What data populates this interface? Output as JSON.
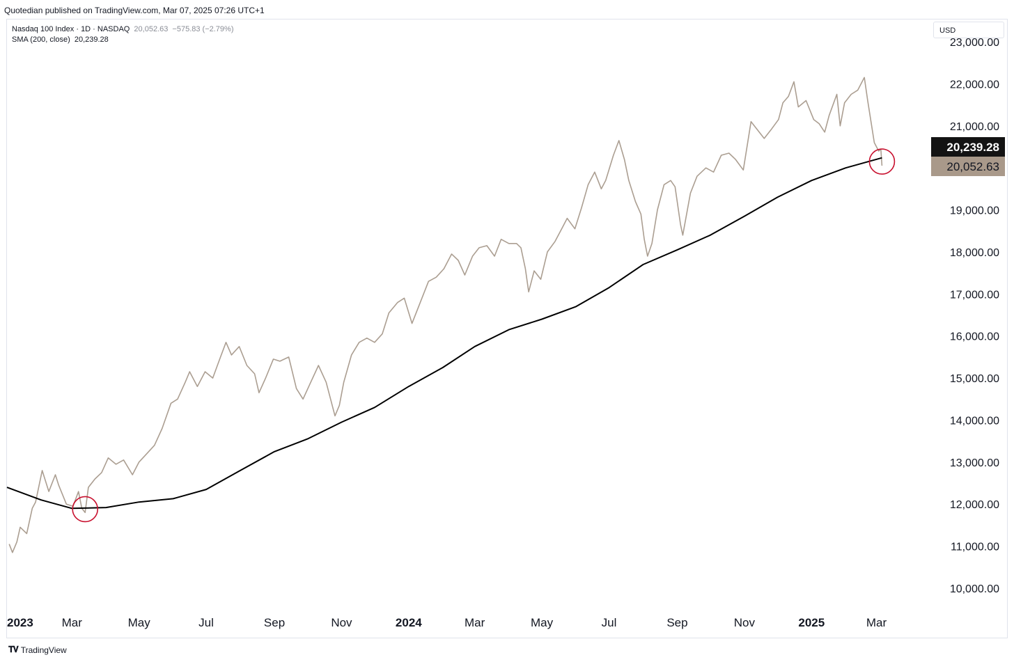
{
  "header": {
    "published": "Quotedian published on TradingView.com, Mar 07, 2025 07:26 UTC+1"
  },
  "legend": {
    "symbol": "Nasdaq 100 Index · 1D · NASDAQ",
    "last": "20,052.63",
    "change": "−575.83 (−2.79%)",
    "sma_label": "SMA (200, close)",
    "sma_value": "20,239.28"
  },
  "currency_button": "USD",
  "footer": {
    "brand": "TradingView"
  },
  "colors": {
    "price": "#ab9e91",
    "sma": "#000000",
    "circle": "#c8102e",
    "sma_tag": "#131313",
    "price_tag": "#a9998a"
  },
  "chart_data": {
    "type": "line",
    "x_axis": {
      "type": "date",
      "range": [
        "2023-01-01",
        "2025-03-07"
      ],
      "ticks": [
        {
          "date": "2023-01-01",
          "label": "2023",
          "bold": true
        },
        {
          "date": "2023-03-01",
          "label": "Mar"
        },
        {
          "date": "2023-05-01",
          "label": "May"
        },
        {
          "date": "2023-07-01",
          "label": "Jul"
        },
        {
          "date": "2023-09-01",
          "label": "Sep"
        },
        {
          "date": "2023-11-01",
          "label": "Nov"
        },
        {
          "date": "2024-01-01",
          "label": "2024",
          "bold": true
        },
        {
          "date": "2024-03-01",
          "label": "Mar"
        },
        {
          "date": "2024-05-01",
          "label": "May"
        },
        {
          "date": "2024-07-01",
          "label": "Jul"
        },
        {
          "date": "2024-09-01",
          "label": "Sep"
        },
        {
          "date": "2024-11-01",
          "label": "Nov"
        },
        {
          "date": "2025-01-01",
          "label": "2025",
          "bold": true
        },
        {
          "date": "2025-03-01",
          "label": "Mar"
        }
      ]
    },
    "y_axis": {
      "position": "right",
      "range": [
        9600,
        23200
      ],
      "ticks": [
        {
          "value": 10000,
          "label": "10,000.00"
        },
        {
          "value": 11000,
          "label": "11,000.00"
        },
        {
          "value": 12000,
          "label": "12,000.00"
        },
        {
          "value": 13000,
          "label": "13,000.00"
        },
        {
          "value": 14000,
          "label": "14,000.00"
        },
        {
          "value": 15000,
          "label": "15,000.00"
        },
        {
          "value": 16000,
          "label": "16,000.00"
        },
        {
          "value": 17000,
          "label": "17,000.00"
        },
        {
          "value": 18000,
          "label": "18,000.00"
        },
        {
          "value": 19000,
          "label": "19,000.00"
        },
        {
          "value": 21000,
          "label": "21,000.00"
        },
        {
          "value": 22000,
          "label": "22,000.00"
        },
        {
          "value": 23000,
          "label": "23,000.00"
        }
      ]
    },
    "grid": false,
    "series": [
      {
        "id": "price",
        "points": [
          [
            "2023-01-03",
            11050
          ],
          [
            "2023-01-06",
            10850
          ],
          [
            "2023-01-10",
            11100
          ],
          [
            "2023-01-13",
            11450
          ],
          [
            "2023-01-19",
            11300
          ],
          [
            "2023-01-24",
            11900
          ],
          [
            "2023-01-27",
            12050
          ],
          [
            "2023-02-02",
            12800
          ],
          [
            "2023-02-08",
            12300
          ],
          [
            "2023-02-14",
            12700
          ],
          [
            "2023-02-17",
            12450
          ],
          [
            "2023-02-24",
            12000
          ],
          [
            "2023-03-02",
            11950
          ],
          [
            "2023-03-07",
            12300
          ],
          [
            "2023-03-10",
            11900
          ],
          [
            "2023-03-13",
            11800
          ],
          [
            "2023-03-16",
            12400
          ],
          [
            "2023-03-22",
            12600
          ],
          [
            "2023-03-28",
            12750
          ],
          [
            "2023-04-03",
            13100
          ],
          [
            "2023-04-10",
            12950
          ],
          [
            "2023-04-17",
            13050
          ],
          [
            "2023-04-25",
            12700
          ],
          [
            "2023-05-01",
            13000
          ],
          [
            "2023-05-08",
            13200
          ],
          [
            "2023-05-15",
            13400
          ],
          [
            "2023-05-22",
            13800
          ],
          [
            "2023-05-30",
            14400
          ],
          [
            "2023-06-05",
            14500
          ],
          [
            "2023-06-12",
            14900
          ],
          [
            "2023-06-16",
            15150
          ],
          [
            "2023-06-23",
            14800
          ],
          [
            "2023-06-30",
            15150
          ],
          [
            "2023-07-07",
            15000
          ],
          [
            "2023-07-14",
            15500
          ],
          [
            "2023-07-19",
            15850
          ],
          [
            "2023-07-24",
            15550
          ],
          [
            "2023-07-31",
            15750
          ],
          [
            "2023-08-07",
            15300
          ],
          [
            "2023-08-14",
            15100
          ],
          [
            "2023-08-18",
            14650
          ],
          [
            "2023-08-24",
            15000
          ],
          [
            "2023-08-31",
            15450
          ],
          [
            "2023-09-06",
            15400
          ],
          [
            "2023-09-14",
            15500
          ],
          [
            "2023-09-21",
            14750
          ],
          [
            "2023-09-27",
            14500
          ],
          [
            "2023-10-04",
            14900
          ],
          [
            "2023-10-11",
            15300
          ],
          [
            "2023-10-18",
            14900
          ],
          [
            "2023-10-26",
            14100
          ],
          [
            "2023-10-30",
            14350
          ],
          [
            "2023-11-03",
            14900
          ],
          [
            "2023-11-10",
            15550
          ],
          [
            "2023-11-17",
            15850
          ],
          [
            "2023-11-24",
            15950
          ],
          [
            "2023-12-01",
            15850
          ],
          [
            "2023-12-08",
            16050
          ],
          [
            "2023-12-14",
            16550
          ],
          [
            "2023-12-22",
            16800
          ],
          [
            "2023-12-28",
            16900
          ],
          [
            "2024-01-04",
            16300
          ],
          [
            "2024-01-10",
            16700
          ],
          [
            "2024-01-19",
            17300
          ],
          [
            "2024-01-26",
            17400
          ],
          [
            "2024-02-02",
            17600
          ],
          [
            "2024-02-09",
            17950
          ],
          [
            "2024-02-15",
            17800
          ],
          [
            "2024-02-21",
            17450
          ],
          [
            "2024-02-28",
            17900
          ],
          [
            "2024-03-05",
            18100
          ],
          [
            "2024-03-12",
            18150
          ],
          [
            "2024-03-19",
            17900
          ],
          [
            "2024-03-25",
            18300
          ],
          [
            "2024-04-01",
            18200
          ],
          [
            "2024-04-08",
            18200
          ],
          [
            "2024-04-12",
            18100
          ],
          [
            "2024-04-16",
            17600
          ],
          [
            "2024-04-19",
            17050
          ],
          [
            "2024-04-24",
            17550
          ],
          [
            "2024-04-30",
            17350
          ],
          [
            "2024-05-06",
            18000
          ],
          [
            "2024-05-13",
            18250
          ],
          [
            "2024-05-20",
            18600
          ],
          [
            "2024-05-24",
            18800
          ],
          [
            "2024-05-31",
            18550
          ],
          [
            "2024-06-06",
            19050
          ],
          [
            "2024-06-12",
            19600
          ],
          [
            "2024-06-18",
            19900
          ],
          [
            "2024-06-24",
            19500
          ],
          [
            "2024-06-28",
            19700
          ],
          [
            "2024-07-05",
            20300
          ],
          [
            "2024-07-10",
            20650
          ],
          [
            "2024-07-15",
            20200
          ],
          [
            "2024-07-19",
            19700
          ],
          [
            "2024-07-25",
            19200
          ],
          [
            "2024-07-30",
            18900
          ],
          [
            "2024-08-02",
            18300
          ],
          [
            "2024-08-05",
            17900
          ],
          [
            "2024-08-09",
            18200
          ],
          [
            "2024-08-14",
            19000
          ],
          [
            "2024-08-20",
            19600
          ],
          [
            "2024-08-26",
            19700
          ],
          [
            "2024-08-30",
            19550
          ],
          [
            "2024-09-04",
            18650
          ],
          [
            "2024-09-06",
            18400
          ],
          [
            "2024-09-13",
            19400
          ],
          [
            "2024-09-19",
            19800
          ],
          [
            "2024-09-27",
            20000
          ],
          [
            "2024-10-04",
            19900
          ],
          [
            "2024-10-11",
            20300
          ],
          [
            "2024-10-18",
            20350
          ],
          [
            "2024-10-24",
            20200
          ],
          [
            "2024-10-31",
            19950
          ],
          [
            "2024-11-07",
            21100
          ],
          [
            "2024-11-13",
            20900
          ],
          [
            "2024-11-19",
            20700
          ],
          [
            "2024-11-25",
            20900
          ],
          [
            "2024-12-02",
            21150
          ],
          [
            "2024-12-06",
            21550
          ],
          [
            "2024-12-11",
            21700
          ],
          [
            "2024-12-16",
            22050
          ],
          [
            "2024-12-20",
            21450
          ],
          [
            "2024-12-27",
            21600
          ],
          [
            "2025-01-03",
            21150
          ],
          [
            "2025-01-08",
            21050
          ],
          [
            "2025-01-13",
            20850
          ],
          [
            "2025-01-17",
            21250
          ],
          [
            "2025-01-24",
            21750
          ],
          [
            "2025-01-27",
            21000
          ],
          [
            "2025-01-31",
            21550
          ],
          [
            "2025-02-06",
            21750
          ],
          [
            "2025-02-12",
            21850
          ],
          [
            "2025-02-18",
            22150
          ],
          [
            "2025-02-21",
            21600
          ],
          [
            "2025-02-27",
            20600
          ],
          [
            "2025-03-03",
            20400
          ],
          [
            "2025-03-05",
            20450
          ],
          [
            "2025-03-06",
            20052.63
          ]
        ]
      },
      {
        "id": "sma",
        "name": "SMA (200, close)",
        "points": [
          [
            "2023-01-01",
            12400
          ],
          [
            "2023-02-01",
            12100
          ],
          [
            "2023-03-01",
            11900
          ],
          [
            "2023-04-01",
            11920
          ],
          [
            "2023-05-01",
            12050
          ],
          [
            "2023-06-01",
            12130
          ],
          [
            "2023-07-01",
            12350
          ],
          [
            "2023-08-01",
            12800
          ],
          [
            "2023-09-01",
            13250
          ],
          [
            "2023-10-01",
            13550
          ],
          [
            "2023-11-01",
            13950
          ],
          [
            "2023-12-01",
            14300
          ],
          [
            "2024-01-01",
            14800
          ],
          [
            "2024-02-01",
            15250
          ],
          [
            "2024-03-01",
            15750
          ],
          [
            "2024-04-01",
            16150
          ],
          [
            "2024-05-01",
            16400
          ],
          [
            "2024-06-01",
            16700
          ],
          [
            "2024-07-01",
            17150
          ],
          [
            "2024-08-01",
            17700
          ],
          [
            "2024-09-01",
            18050
          ],
          [
            "2024-10-01",
            18400
          ],
          [
            "2024-11-01",
            18850
          ],
          [
            "2024-12-01",
            19300
          ],
          [
            "2025-01-01",
            19700
          ],
          [
            "2025-02-01",
            20000
          ],
          [
            "2025-03-06",
            20239.28
          ]
        ]
      }
    ],
    "price_tags": [
      {
        "value": 20239.28,
        "label": "20,239.28",
        "series": "sma"
      },
      {
        "value": 20052.63,
        "label": "20,052.63",
        "series": "price"
      }
    ],
    "annotations": [
      {
        "type": "circle",
        "date": "2023-03-13",
        "value": 11880
      },
      {
        "type": "circle",
        "date": "2025-03-06",
        "value": 20150
      }
    ]
  }
}
